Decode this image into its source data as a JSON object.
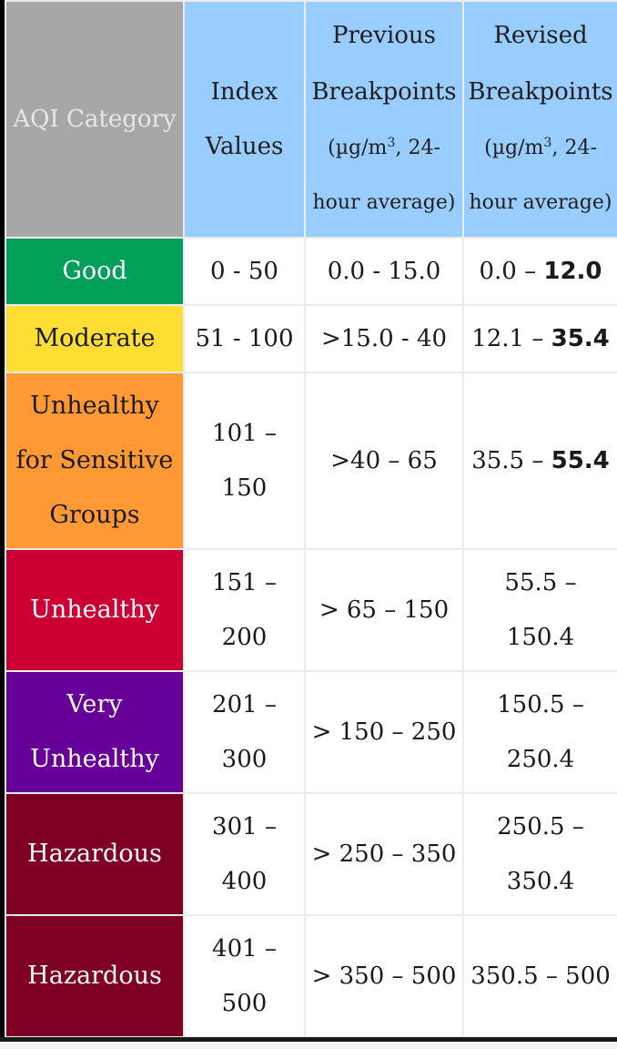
{
  "header": {
    "category": "AQI Category",
    "index": "Index Values",
    "previous": {
      "line1": "Previous Breakpoints",
      "unit_pre": "(µg/m",
      "unit_sup": "3",
      "unit_post": ", 24-",
      "line3": "hour average)"
    },
    "revised": {
      "line1": "Revised Breakpoints",
      "unit_pre": "(µg/m",
      "unit_sup": "3",
      "unit_post": ", 24-",
      "line3": "hour average)"
    }
  },
  "rows": [
    {
      "category": "Good",
      "color": "#00a05a",
      "text_color": "#ffffff",
      "index": "0 - 50",
      "previous": "0.0 - 15.0",
      "revised_pre": "0.0 – ",
      "revised_bold": "12.0",
      "revised_post": ""
    },
    {
      "category": "Moderate",
      "color": "#ffde33",
      "text_color": "#1a1a1a",
      "index": "51 - 100",
      "previous": ">15.0 - 40",
      "revised_pre": "12.1 – ",
      "revised_bold": "35.4",
      "revised_post": ""
    },
    {
      "category": "Unhealthy for Sensitive Groups",
      "color": "#ff9933",
      "text_color": "#1a1a1a",
      "index": "101 – 150",
      "previous": ">40 – 65",
      "revised_pre": "35.5 – ",
      "revised_bold": "55.4",
      "revised_post": ""
    },
    {
      "category": "Unhealthy",
      "color": "#cc0033",
      "text_color": "#ffffff",
      "index": "151 – 200",
      "previous": "> 65 – 150",
      "revised_pre": "55.5 – 150.4",
      "revised_bold": "",
      "revised_post": ""
    },
    {
      "category": "Very Unhealthy",
      "color": "#660099",
      "text_color": "#ffffff",
      "index": "201 – 300",
      "previous": "> 150 – 250",
      "revised_pre": "150.5 – 250.4",
      "revised_bold": "",
      "revised_post": ""
    },
    {
      "category": "Hazardous",
      "color": "#7e0023",
      "text_color": "#ffffff",
      "index": "301 – 400",
      "previous": "> 250 – 350",
      "revised_pre": "250.5 – 350.4",
      "revised_bold": "",
      "revised_post": ""
    },
    {
      "category": "Hazardous",
      "color": "#7e0023",
      "text_color": "#ffffff",
      "index": "401 – 500",
      "previous": "> 350 – 500",
      "revised_pre": "350.5 – 500",
      "revised_bold": "",
      "revised_post": ""
    }
  ]
}
